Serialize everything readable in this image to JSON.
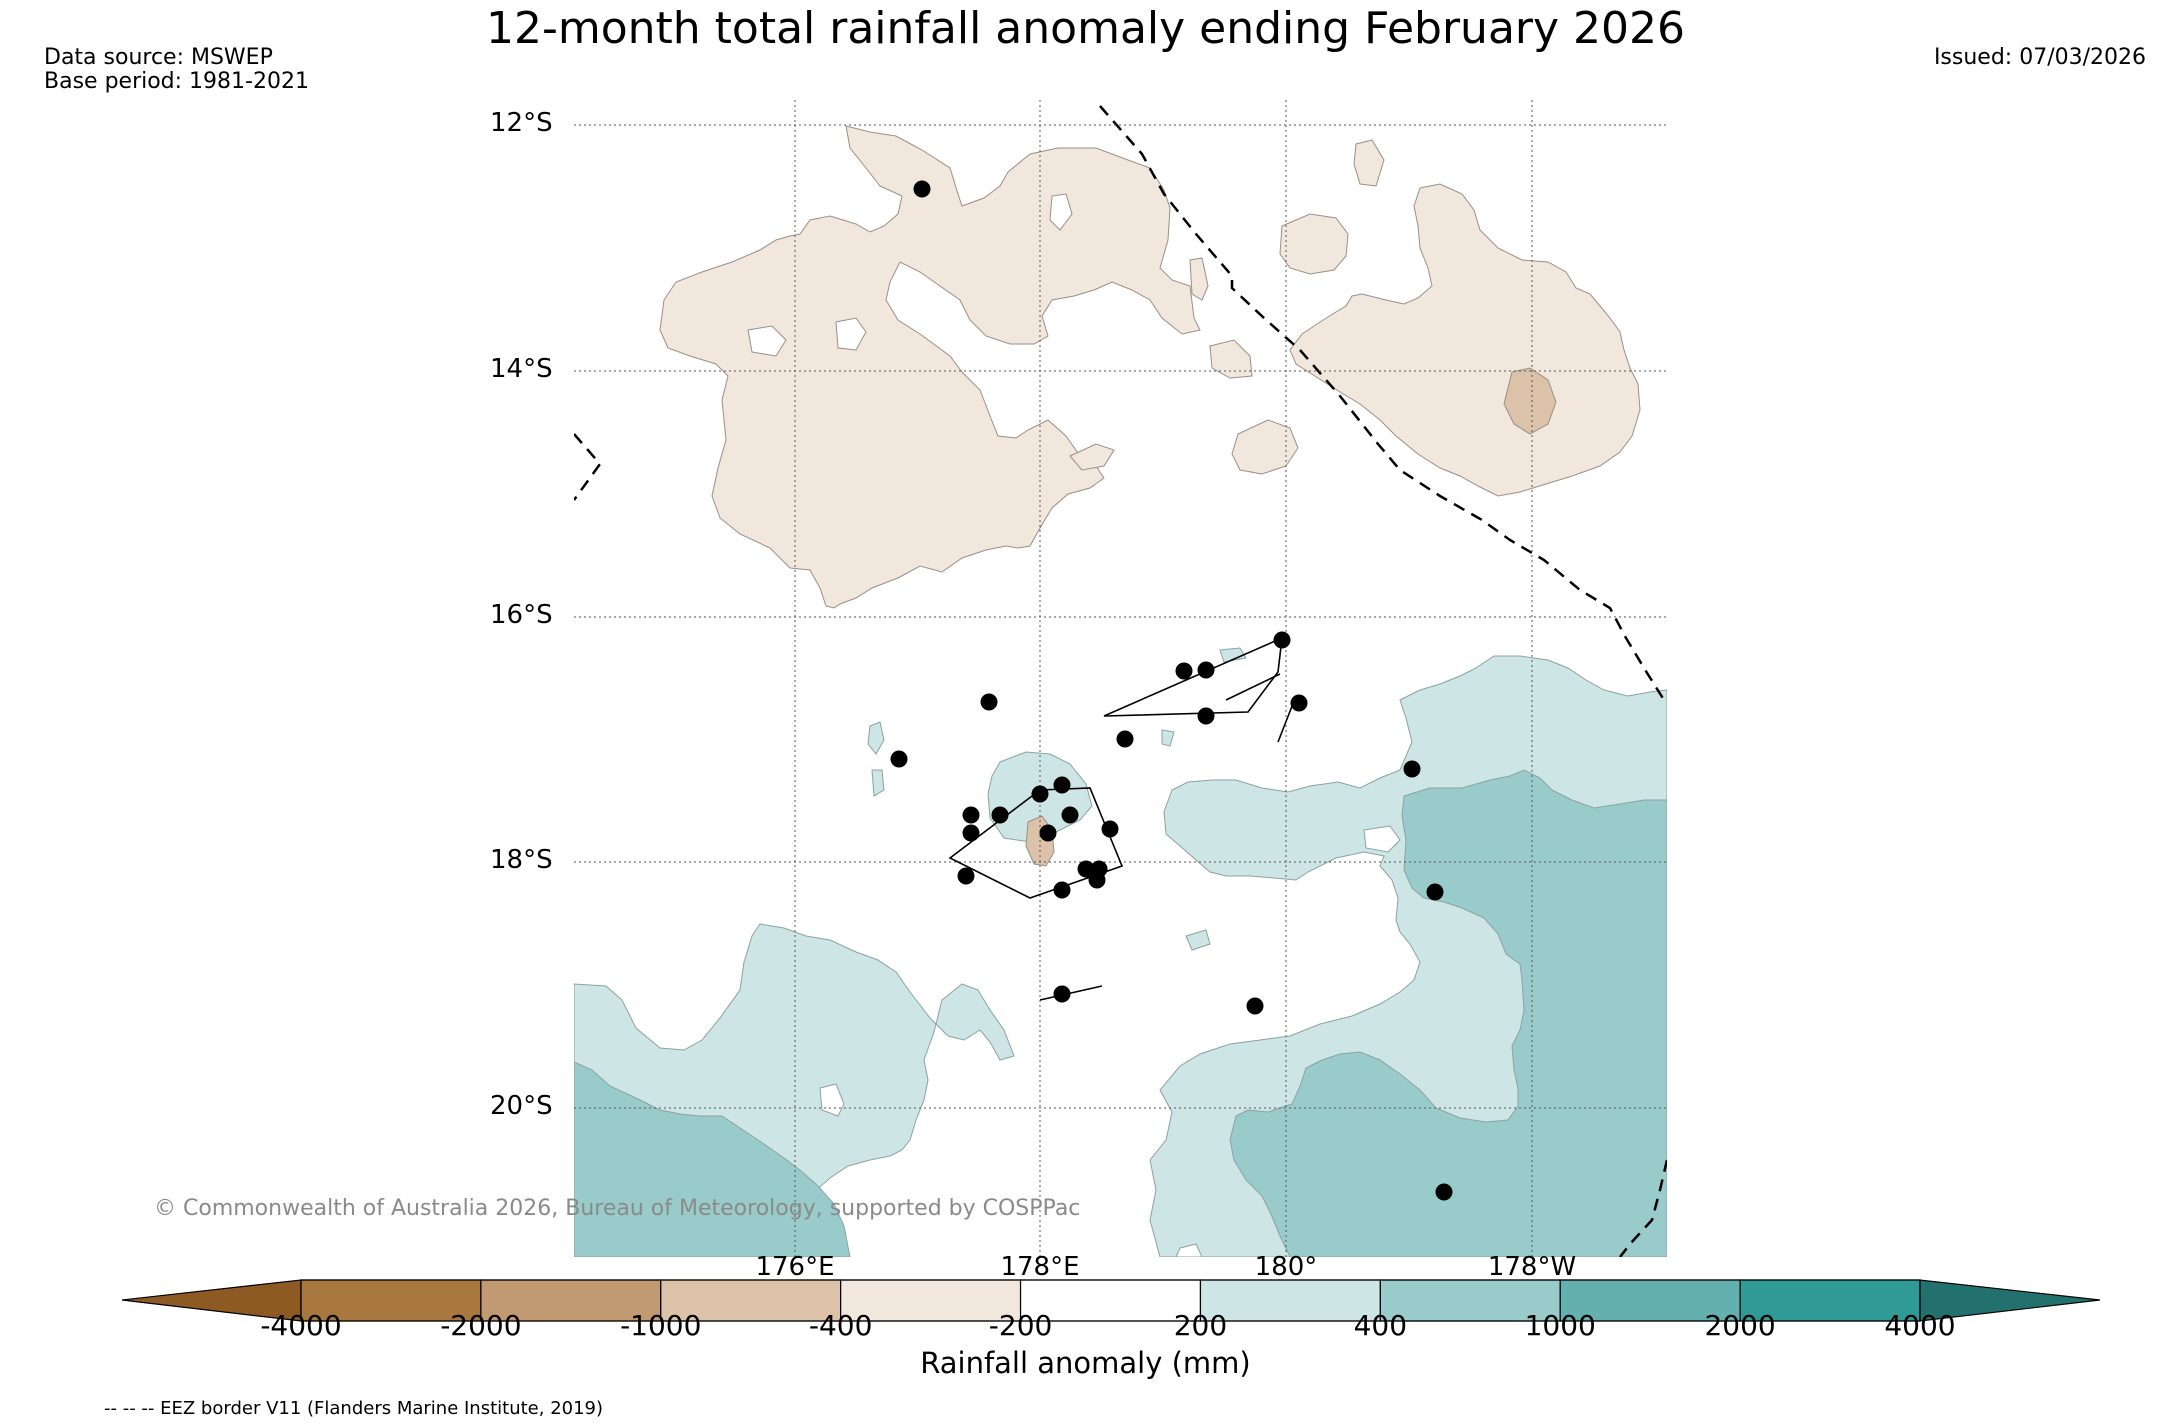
{
  "title": "12-month total rainfall anomaly ending February 2026",
  "data_source": "Data source: MSWEP",
  "base_period": "Base period: 1981-2021",
  "issued": "Issued: 07/03/2026",
  "copyright": "© Commonwealth of Australia 2026, Bureau of Meteorology, supported by COSPPac",
  "lat_labels": [
    "12°S",
    "14°S",
    "16°S",
    "18°S",
    "20°S"
  ],
  "lon_labels": [
    "176°E",
    "178°E",
    "180°",
    "178°W"
  ],
  "colorbar": {
    "title": "Rainfall anomaly (mm)",
    "ticks": [
      "-4000",
      "-2000",
      "-1000",
      "-400",
      "-200",
      "200",
      "400",
      "1000",
      "2000",
      "4000"
    ],
    "colors": [
      "#8e5a23",
      "#a97840",
      "#c19a72",
      "#dbc2a8",
      "#f1e7dd",
      "#ffffff",
      "#cde5e4",
      "#99cbcb",
      "#63b0ae",
      "#309a96",
      "#22716e"
    ]
  },
  "footnote": "-- -- -- EEZ border V11 (Flanders Marine Institute, 2019)",
  "icons": {
    "station": "station-dot-icon",
    "eez": "eez-border-line"
  }
}
